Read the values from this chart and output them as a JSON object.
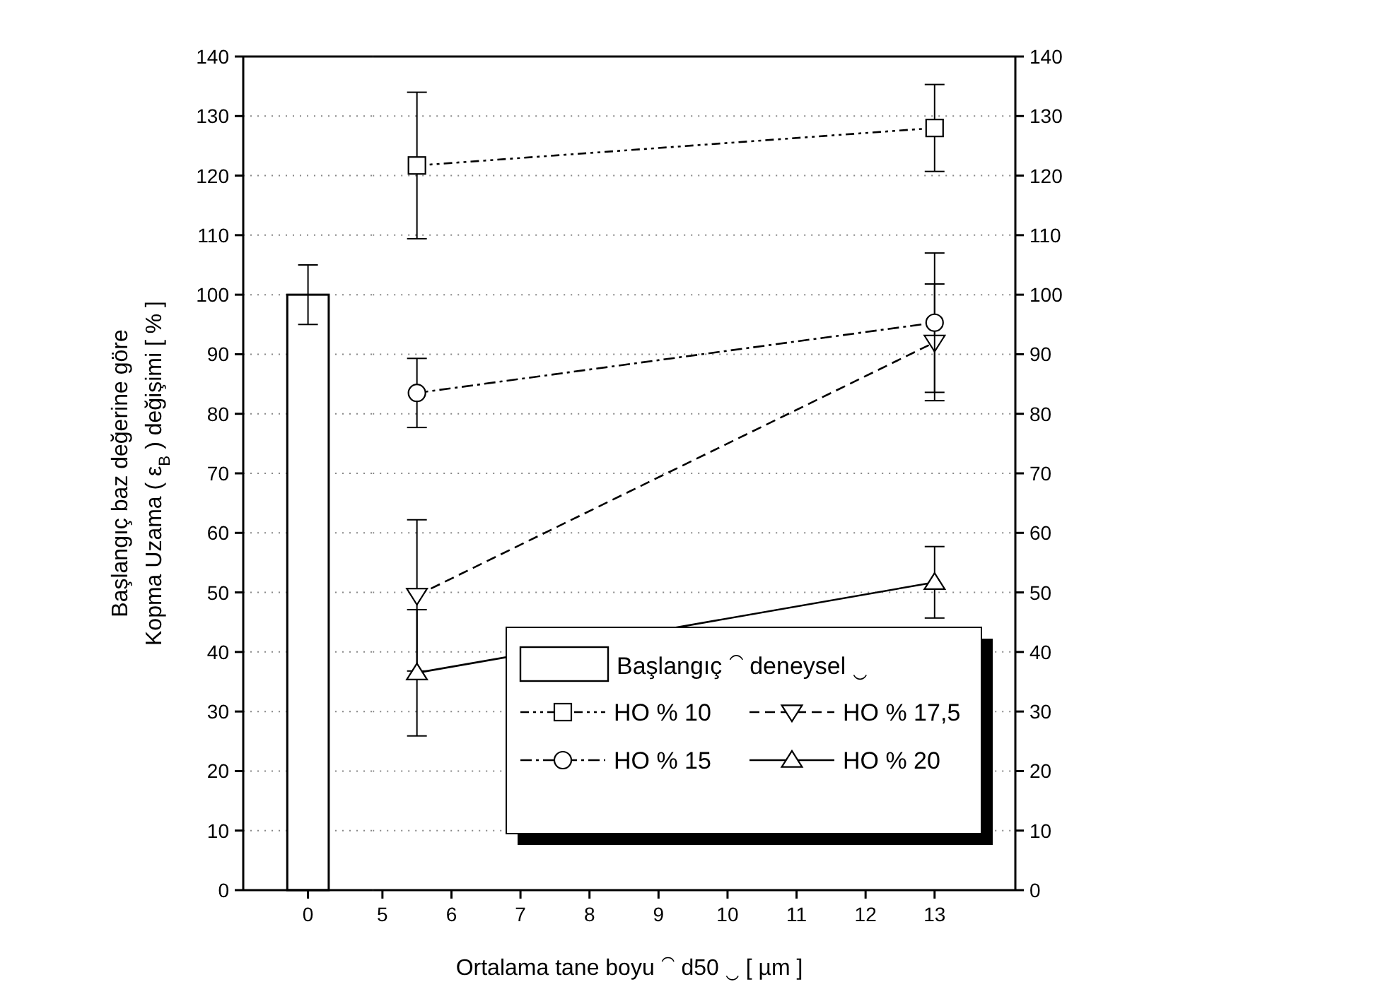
{
  "chart_data": [
    {
      "type": "bar",
      "ylabel": "Başlangıç  baz değerine göre\nKopma Uzama (   ε$_{B}$   ) değişimi   [   %   ]",
      "categories": [
        "0"
      ],
      "ylim": [
        0,
        140
      ],
      "yticks": [
        0,
        10,
        20,
        30,
        40,
        50,
        60,
        70,
        80,
        90,
        100,
        110,
        120,
        130,
        140
      ],
      "grid": "y",
      "series": [
        {
          "name": "Başlangıç ⁀ deneysel ‿",
          "color": "#000000",
          "values": [
            100
          ],
          "errors": [
            5
          ]
        }
      ]
    },
    {
      "type": "line",
      "xlabel": "Ortalama tane boyu ⁀ d50 ‿   [   µm   ]",
      "xlim": [
        4.86,
        14.17
      ],
      "xticks": [
        5,
        6,
        7,
        8,
        9,
        10,
        11,
        12,
        13
      ],
      "y2lim": [
        0,
        140
      ],
      "y2ticks": [
        0,
        10,
        20,
        30,
        40,
        50,
        60,
        70,
        80,
        90,
        100,
        110,
        120,
        130,
        140
      ],
      "grid": "y",
      "legend": "bottom right",
      "x": [
        5.5,
        13
      ],
      "series": [
        {
          "name": "HO % 10",
          "axis": "y2",
          "color": "#000000",
          "marker": "square",
          "line_style": "dashdotdot",
          "values": [
            121.7,
            128
          ],
          "errors": [
            12.3,
            7.3
          ]
        },
        {
          "name": "HO % 17,5",
          "axis": "y2",
          "color": "#000000",
          "marker": "triangle-down",
          "line_style": "dashed",
          "values": [
            49.5,
            92
          ],
          "errors": [
            12.7,
            9.8
          ]
        },
        {
          "name": "HO % 15",
          "axis": "y2",
          "color": "#000000",
          "marker": "circle",
          "line_style": "dashdot",
          "values": [
            83.5,
            95.3
          ],
          "errors": [
            5.8,
            11.7
          ]
        },
        {
          "name": "HO % 20",
          "axis": "y2",
          "color": "#000000",
          "marker": "triangle",
          "line_style": "solid",
          "values": [
            36.5,
            51.7
          ],
          "errors": [
            10.6,
            6
          ]
        }
      ]
    }
  ]
}
